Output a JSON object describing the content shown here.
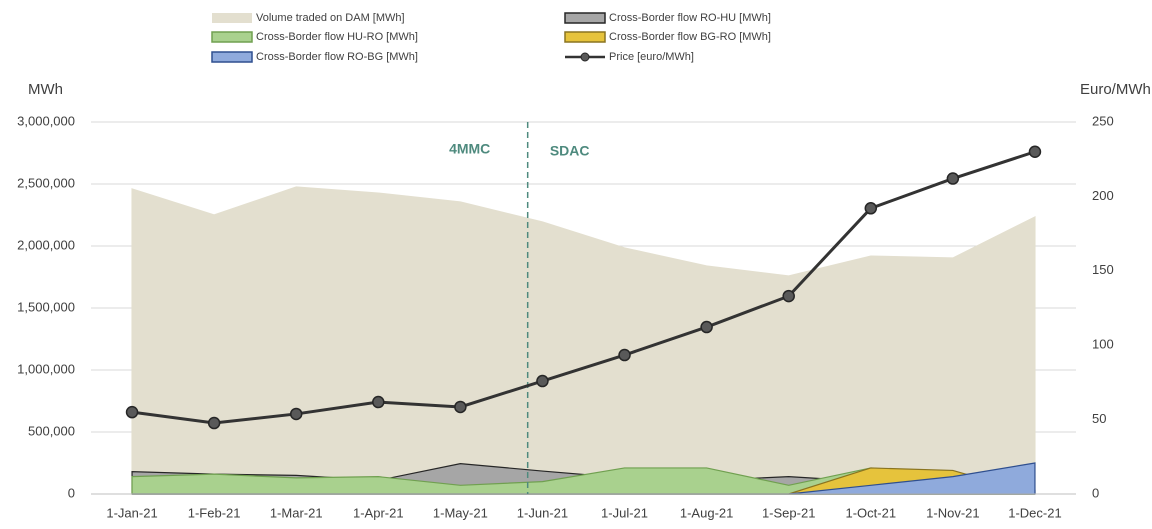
{
  "chart_data": {
    "type": "area_line",
    "y_label": "MWh",
    "y2_label": "Euro/MWh",
    "annotations": [
      "4MMC",
      "SDAC"
    ],
    "categories": [
      "1-Jan-21",
      "1-Feb-21",
      "1-Mar-21",
      "1-Apr-21",
      "1-May-21",
      "1-Jun-21",
      "1-Jul-21",
      "1-Aug-21",
      "1-Sep-21",
      "1-Oct-21",
      "1-Nov-21",
      "1-Dec-21"
    ],
    "series": [
      {
        "name": "Volume traded on DAM [MWh]",
        "kind": "area",
        "color": "#e3dfcf",
        "stroke": "#e3dfcf",
        "values": [
          2460000,
          2250000,
          2476000,
          2427000,
          2355000,
          2194000,
          1984000,
          1839000,
          1758000,
          1919000,
          1903000,
          2234000
        ]
      },
      {
        "name": "Cross-Border flow RO-HU [MWh]",
        "kind": "area",
        "color": "#a6a6a6",
        "stroke": "#262626",
        "values": [
          180000,
          160000,
          150000,
          110000,
          245000,
          185000,
          130000,
          110000,
          140000,
          100000,
          50000,
          30000
        ]
      },
      {
        "name": "Cross-Border flow HU-RO [MWh]",
        "kind": "area",
        "color": "#a9d18e",
        "stroke": "#70a050",
        "values": [
          140000,
          160000,
          130000,
          140000,
          70000,
          100000,
          210000,
          210000,
          70000,
          210000,
          150000,
          0
        ]
      },
      {
        "name": "Cross-Border flow BG-RO [MWh]",
        "kind": "area",
        "color": "#e6c33c",
        "stroke": "#8a7420",
        "values": [
          0,
          0,
          0,
          0,
          0,
          0,
          0,
          0,
          0,
          210000,
          190000,
          0
        ]
      },
      {
        "name": "Cross-Border flow RO-BG [MWh]",
        "kind": "area",
        "color": "#8faadc",
        "stroke": "#2f4f8f",
        "values": [
          0,
          0,
          0,
          0,
          0,
          0,
          0,
          0,
          0,
          70000,
          140000,
          250000
        ]
      },
      {
        "name": "Price [euro/MWh]",
        "kind": "line",
        "axis": "y2",
        "color": "#333333",
        "values": [
          55,
          47.7,
          53.8,
          61.8,
          58.5,
          75.9,
          93.4,
          112.2,
          133,
          192,
          212,
          230
        ]
      }
    ],
    "ylim": [
      0,
      3000000
    ],
    "yticks": [
      0,
      {
        "value": 500000,
        "label": "500,000"
      },
      {
        "value": 1000000,
        "label": "1,000,000"
      },
      {
        "value": 1500000,
        "label": "1,500,000"
      },
      {
        "value": 2000000,
        "label": "2,000,000"
      },
      {
        "value": 2500000,
        "label": "2,500,000"
      },
      {
        "value": 3000000,
        "label": "3,000,000"
      }
    ],
    "y2lim": [
      0,
      250
    ],
    "y2ticks": [
      0,
      50,
      100,
      150,
      200,
      250
    ],
    "grid": true
  }
}
